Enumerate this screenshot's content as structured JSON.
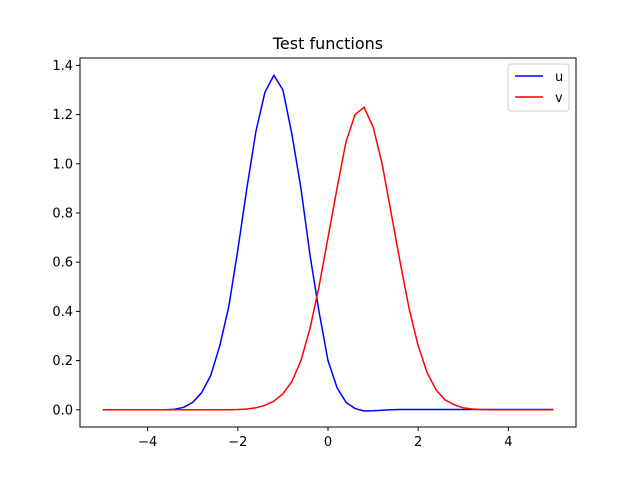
{
  "chart_data": {
    "type": "line",
    "title": "Test functions",
    "xlabel": "",
    "ylabel": "",
    "xlim": [
      -5.5,
      5.5
    ],
    "ylim": [
      -0.07,
      1.43
    ],
    "xticks": [
      -4,
      -2,
      0,
      2,
      4
    ],
    "xtick_labels": [
      "−4",
      "−2",
      "0",
      "2",
      "4"
    ],
    "yticks": [
      0.0,
      0.2,
      0.4,
      0.6,
      0.8,
      1.0,
      1.2,
      1.4
    ],
    "ytick_labels": [
      "0.0",
      "0.2",
      "0.4",
      "0.6",
      "0.8",
      "1.0",
      "1.2",
      "1.4"
    ],
    "grid": false,
    "legend_position": "top-right",
    "series": [
      {
        "name": "u",
        "color": "#0000ff",
        "x": [
          -5.0,
          -4.8,
          -4.6,
          -4.4,
          -4.2,
          -4.0,
          -3.8,
          -3.6,
          -3.4,
          -3.2,
          -3.0,
          -2.8,
          -2.6,
          -2.4,
          -2.2,
          -2.0,
          -1.8,
          -1.6,
          -1.4,
          -1.2,
          -1.0,
          -0.8,
          -0.6,
          -0.4,
          -0.2,
          0.0,
          0.2,
          0.4,
          0.6,
          0.8,
          1.0,
          1.2,
          1.4,
          1.6,
          1.8,
          2.0,
          2.2,
          2.4,
          2.6,
          2.8,
          3.0,
          3.2,
          3.4,
          3.6,
          3.8,
          4.0,
          4.2,
          4.4,
          4.6,
          4.8,
          5.0
        ],
        "values": [
          0.0,
          0.0,
          0.0,
          0.0,
          0.0,
          0.0,
          0.0,
          0.0,
          0.002,
          0.01,
          0.03,
          0.07,
          0.14,
          0.26,
          0.42,
          0.65,
          0.9,
          1.13,
          1.29,
          1.36,
          1.3,
          1.12,
          0.9,
          0.63,
          0.4,
          0.2,
          0.09,
          0.03,
          0.005,
          -0.005,
          -0.004,
          -0.002,
          0.0,
          0.001,
          0.001,
          0.001,
          0.001,
          0.001,
          0.001,
          0.001,
          0.001,
          0.001,
          0.001,
          0.001,
          0.001,
          0.001,
          0.001,
          0.001,
          0.001,
          0.001,
          0.001
        ]
      },
      {
        "name": "v",
        "color": "#ff0000",
        "x": [
          -5.0,
          -4.8,
          -4.6,
          -4.4,
          -4.2,
          -4.0,
          -3.8,
          -3.6,
          -3.4,
          -3.2,
          -3.0,
          -2.8,
          -2.6,
          -2.4,
          -2.2,
          -2.0,
          -1.8,
          -1.6,
          -1.4,
          -1.2,
          -1.0,
          -0.8,
          -0.6,
          -0.4,
          -0.2,
          0.0,
          0.2,
          0.4,
          0.6,
          0.8,
          1.0,
          1.2,
          1.4,
          1.6,
          1.8,
          2.0,
          2.2,
          2.4,
          2.6,
          2.8,
          3.0,
          3.2,
          3.4,
          3.6,
          3.8,
          4.0,
          4.2,
          4.4,
          4.6,
          4.8,
          5.0
        ],
        "values": [
          0.0,
          0.0,
          0.0,
          0.0,
          0.0,
          0.0,
          0.0,
          0.0,
          0.0,
          0.0,
          0.0,
          0.0,
          0.0,
          0.0,
          0.0,
          0.001,
          0.003,
          0.008,
          0.018,
          0.035,
          0.065,
          0.115,
          0.2,
          0.33,
          0.5,
          0.7,
          0.9,
          1.09,
          1.2,
          1.23,
          1.15,
          1.0,
          0.8,
          0.6,
          0.41,
          0.26,
          0.15,
          0.08,
          0.04,
          0.02,
          0.008,
          0.003,
          0.001,
          0.0,
          0.0,
          0.0,
          0.0,
          0.0,
          0.0,
          0.0,
          0.0
        ]
      }
    ]
  }
}
